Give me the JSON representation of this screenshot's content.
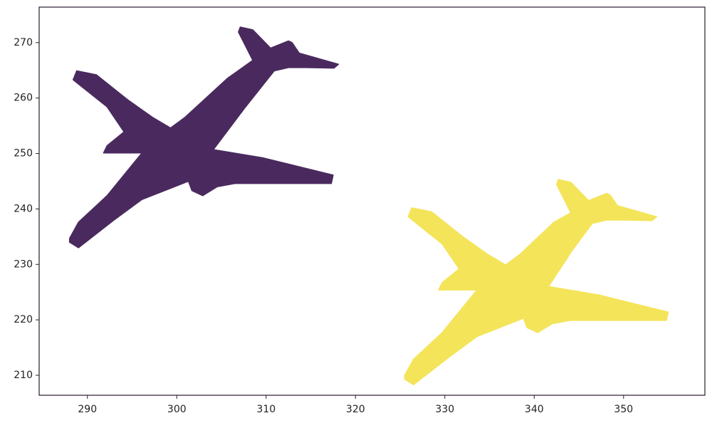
{
  "chart_data": {
    "type": "scatter",
    "xlim": [
      284.6,
      359.1
    ],
    "ylim": [
      206.4,
      276.4
    ],
    "xticks": [
      290,
      300,
      310,
      320,
      330,
      340,
      350
    ],
    "yticks": [
      210,
      220,
      230,
      240,
      250,
      260,
      270
    ],
    "series": [
      {
        "color": "#4a2a5e",
        "x": [
          288.0,
          289.0,
          292.9,
          296.1,
          301.3,
          301.7,
          302.9,
          304.5,
          306.5,
          317.3,
          317.5,
          309.7,
          304.1,
          307.7,
          310.9,
          312.5,
          314.5,
          317.6,
          318.1,
          313.7,
          312.9,
          312.5,
          310.5,
          308.5,
          307.1,
          306.9,
          308.5,
          305.7,
          300.9,
          299.3,
          297.3,
          294.5,
          291.0,
          288.8,
          288.4,
          292.2,
          294.1,
          292.2,
          291.8,
          294.1,
          296.1,
          292.2,
          289.0,
          288.0
        ],
        "y": [
          234.0,
          233.0,
          237.9,
          241.7,
          245.0,
          243.3,
          242.4,
          244.0,
          244.6,
          244.6,
          246.1,
          249.2,
          250.7,
          258.4,
          264.9,
          265.5,
          265.5,
          265.4,
          266.1,
          268.1,
          270.0,
          270.3,
          269.0,
          272.3,
          272.8,
          271.9,
          266.8,
          263.6,
          256.5,
          254.6,
          256.5,
          259.7,
          264.2,
          264.9,
          263.3,
          258.4,
          253.9,
          251.4,
          250.1,
          250.1,
          250.1,
          242.4,
          237.6,
          234.7
        ]
      },
      {
        "color": "#f4e45a",
        "x": [
          325.5,
          326.5,
          330.4,
          333.6,
          338.8,
          339.2,
          340.4,
          342.0,
          344.0,
          354.8,
          355.0,
          347.2,
          341.6,
          344.2,
          346.5,
          348.1,
          350.1,
          353.2,
          353.7,
          349.3,
          348.5,
          348.1,
          346.1,
          344.1,
          342.7,
          342.5,
          344.1,
          342.2,
          338.4,
          336.8,
          334.8,
          332.0,
          328.5,
          326.3,
          325.9,
          329.7,
          331.6,
          329.7,
          329.3,
          331.6,
          333.6,
          329.7,
          326.5,
          325.5
        ],
        "y": [
          209.3,
          208.3,
          213.2,
          217.0,
          220.3,
          218.6,
          217.7,
          219.3,
          219.9,
          219.9,
          221.4,
          224.5,
          226.0,
          232.4,
          237.4,
          238.0,
          238.0,
          237.9,
          238.6,
          240.6,
          242.5,
          242.8,
          241.5,
          244.8,
          245.3,
          244.4,
          239.3,
          237.6,
          231.8,
          229.9,
          231.8,
          235.0,
          239.5,
          240.2,
          238.6,
          233.7,
          229.2,
          226.7,
          225.4,
          225.4,
          225.4,
          217.7,
          212.9,
          210.0
        ]
      }
    ]
  }
}
